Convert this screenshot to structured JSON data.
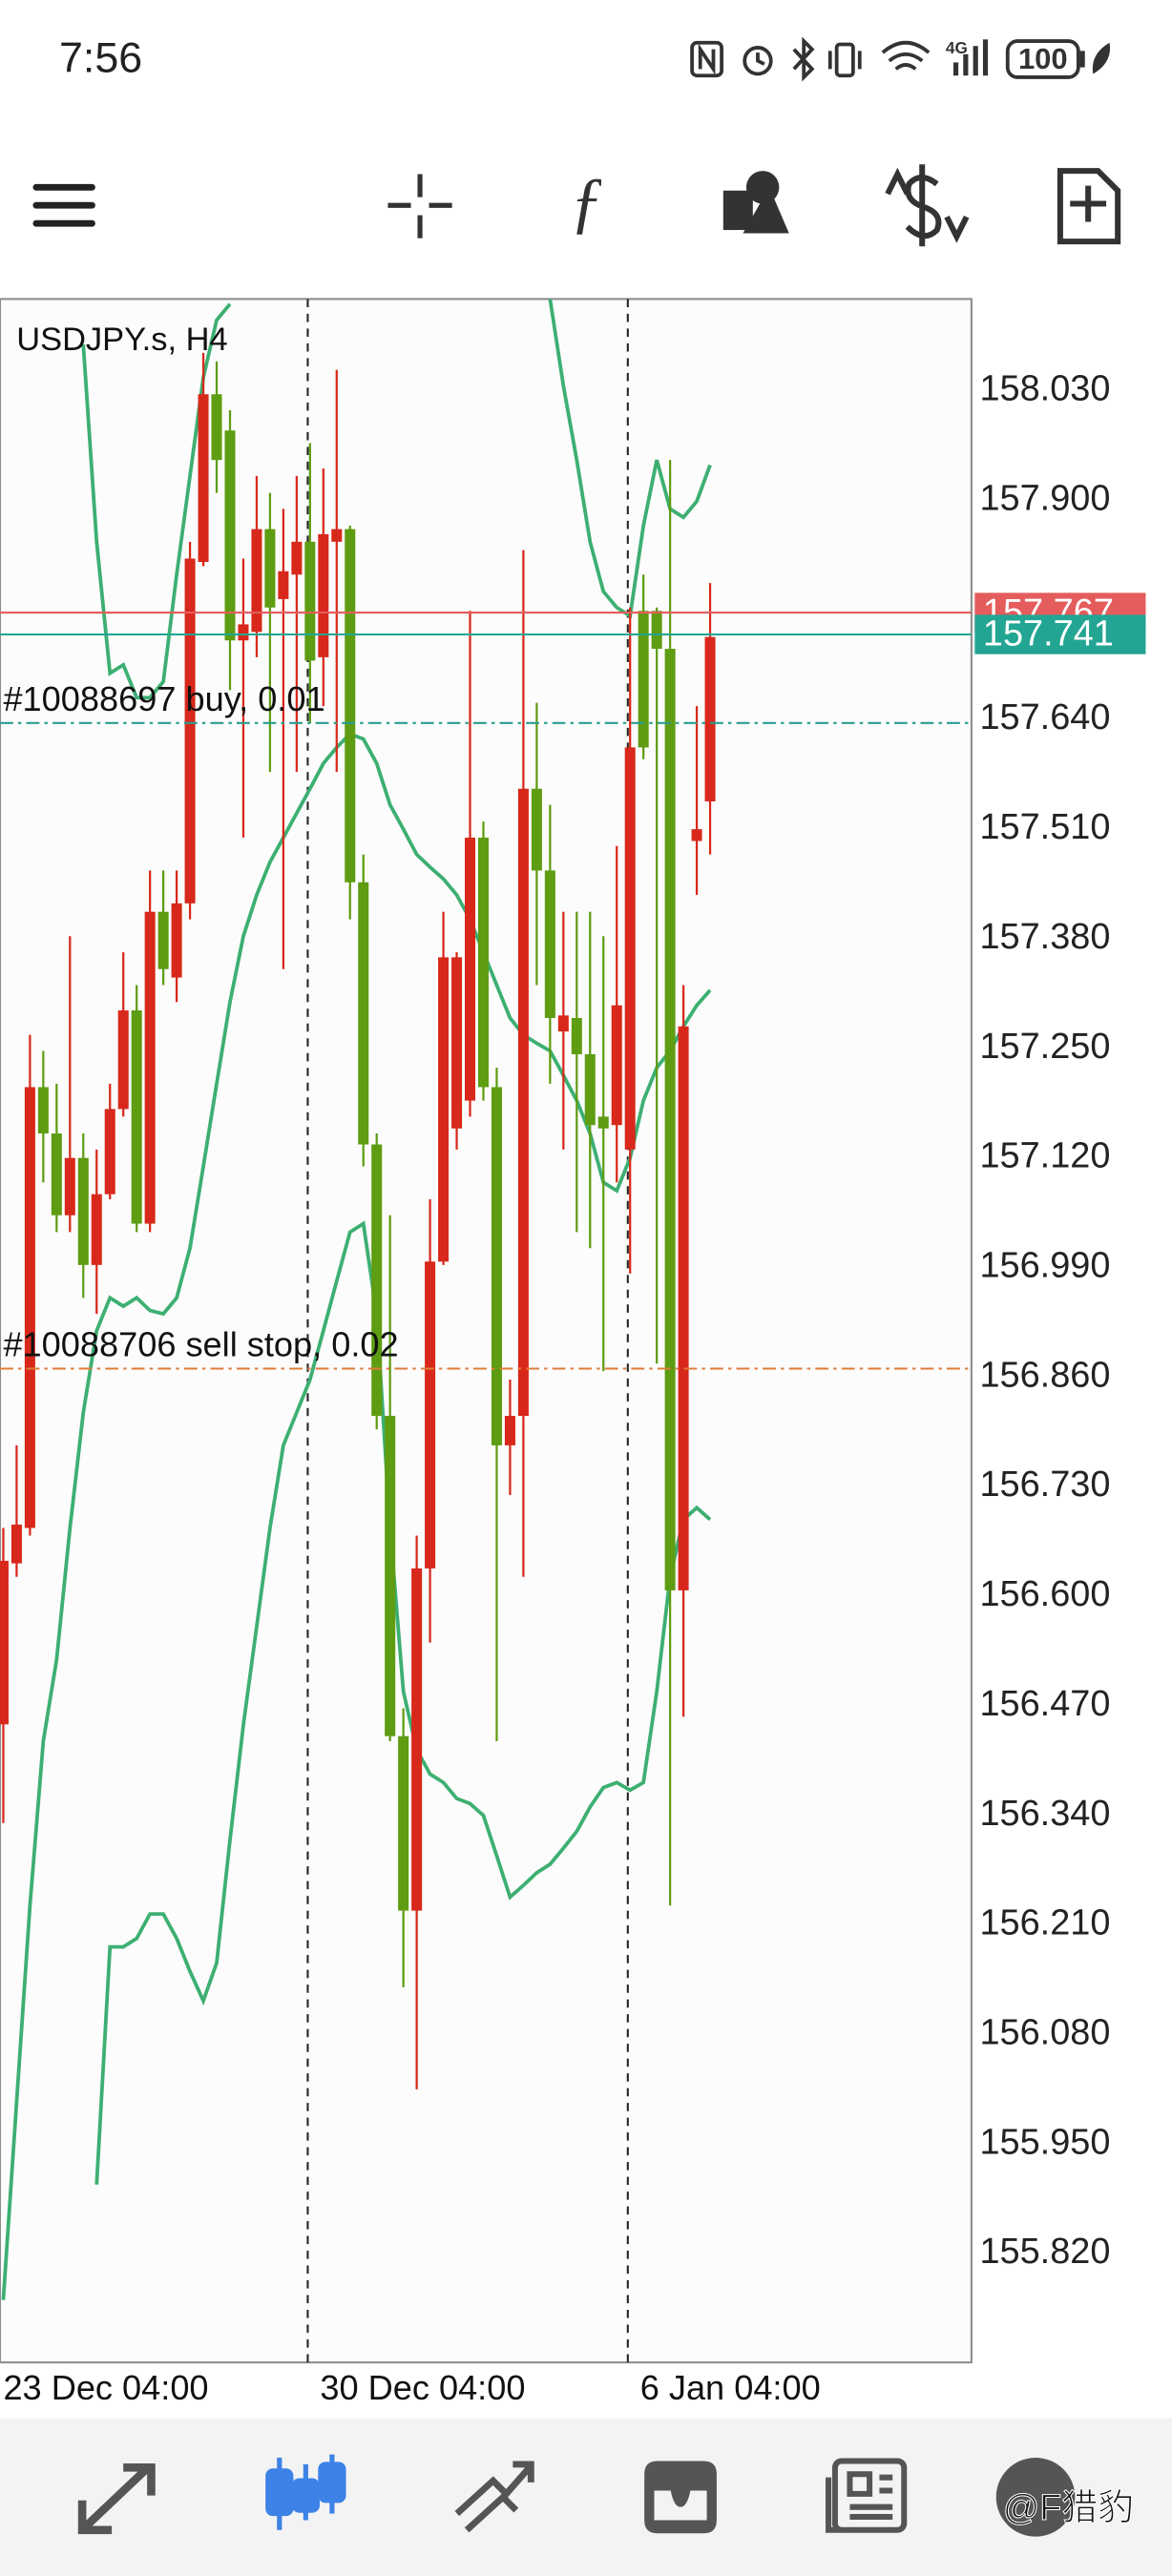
{
  "status_bar": {
    "time": "7:56",
    "network": "4G",
    "battery": "100"
  },
  "watermark": "@F猎豹",
  "chart_data": {
    "type": "candlestick",
    "title": "USDJPY.s, H4",
    "categories": [
      "23 Dec 04:00",
      null,
      null,
      null,
      null,
      null,
      null,
      null,
      null,
      null,
      null,
      null,
      null,
      null,
      null,
      null,
      null,
      null,
      null,
      null,
      null,
      null,
      null,
      null,
      "30 Dec 04:00",
      null,
      null,
      null,
      null,
      null,
      null,
      null,
      null,
      null,
      null,
      null,
      null,
      null,
      null,
      null,
      null,
      null,
      null,
      null,
      null,
      null,
      null,
      null,
      "6 Jan 04:00",
      null,
      null,
      null,
      null,
      null
    ],
    "open": [
      156.448,
      156.639,
      156.681,
      157.204,
      157.149,
      157.052,
      157.12,
      156.993,
      157.077,
      157.178,
      157.295,
      157.042,
      157.412,
      157.334,
      157.422,
      157.827,
      158.026,
      157.983,
      157.734,
      157.744,
      157.866,
      157.783,
      157.812,
      157.851,
      157.714,
      157.851,
      157.866,
      157.447,
      157.136,
      156.814,
      156.434,
      156.227,
      156.633,
      156.997,
      157.155,
      157.188,
      157.5,
      157.204,
      156.779,
      156.814,
      157.558,
      157.461,
      157.27,
      157.286,
      157.243,
      157.169,
      157.159,
      157.13,
      157.769,
      157.769,
      157.724,
      156.607,
      157.496,
      157.543
    ],
    "high": [
      156.681,
      156.779,
      157.266,
      157.247,
      157.208,
      157.383,
      157.149,
      157.13,
      157.208,
      157.364,
      157.325,
      157.461,
      157.461,
      157.461,
      157.851,
      158.075,
      158.065,
      158.007,
      157.831,
      157.929,
      157.909,
      157.89,
      157.929,
      157.968,
      157.938,
      158.055,
      157.87,
      157.48,
      157.149,
      157.052,
      156.467,
      156.672,
      157.071,
      157.412,
      157.364,
      157.769,
      157.519,
      157.227,
      156.857,
      157.841,
      157.66,
      157.539,
      157.412,
      157.412,
      157.412,
      157.383,
      157.49,
      157.773,
      157.812,
      157.773,
      157.948,
      157.325,
      157.656,
      157.802
    ],
    "low": [
      156.331,
      156.623,
      156.672,
      157.091,
      157.032,
      157.032,
      156.954,
      156.935,
      157.071,
      157.169,
      157.032,
      157.032,
      157.325,
      157.305,
      157.403,
      157.822,
      157.909,
      157.675,
      157.5,
      157.714,
      157.578,
      157.344,
      157.578,
      157.636,
      157.656,
      157.578,
      157.403,
      157.11,
      156.798,
      156.428,
      156.136,
      156.015,
      156.545,
      156.993,
      157.13,
      157.169,
      157.188,
      156.428,
      156.72,
      156.623,
      157.325,
      157.208,
      157.13,
      157.032,
      157.013,
      156.867,
      157.091,
      156.983,
      157.593,
      156.876,
      156.233,
      156.457,
      157.432,
      157.48
    ],
    "close": [
      156.642,
      156.685,
      157.204,
      157.149,
      157.052,
      157.12,
      156.993,
      157.077,
      157.178,
      157.295,
      157.042,
      157.412,
      157.344,
      157.422,
      157.831,
      158.026,
      157.948,
      157.734,
      157.753,
      157.866,
      157.773,
      157.816,
      157.851,
      157.71,
      157.86,
      157.866,
      157.447,
      157.136,
      156.814,
      156.434,
      156.227,
      156.633,
      156.997,
      157.358,
      157.358,
      157.5,
      157.204,
      156.779,
      156.814,
      157.558,
      157.461,
      157.286,
      157.289,
      157.243,
      157.159,
      157.155,
      157.301,
      157.607,
      157.607,
      157.724,
      156.607,
      157.276,
      157.51,
      157.738
    ],
    "up_color": "#d8281b",
    "down_color": "#5e9c12",
    "bands": {
      "color": "#3daf72",
      "upper": [
        null,
        null,
        null,
        null,
        null,
        null,
        158.085,
        157.851,
        157.695,
        157.705,
        157.666,
        157.666,
        157.685,
        157.812,
        157.929,
        158.046,
        158.114,
        158.133,
        null,
        null,
        null,
        null,
        null,
        null,
        null,
        null,
        null,
        null,
        null,
        null,
        null,
        null,
        null,
        null,
        null,
        null,
        null,
        null,
        null,
        null,
        null,
        158.139,
        158.036,
        157.948,
        157.851,
        157.792,
        157.773,
        157.763,
        157.87,
        157.948,
        157.89,
        157.88,
        157.899,
        157.942
      ],
      "middle": [
        155.765,
        156.0,
        156.233,
        156.428,
        156.525,
        156.681,
        156.818,
        156.915,
        156.954,
        156.944,
        156.954,
        156.939,
        156.935,
        156.954,
        157.013,
        157.11,
        157.208,
        157.305,
        157.383,
        157.432,
        157.471,
        157.5,
        157.529,
        157.558,
        157.588,
        157.607,
        157.623,
        157.617,
        157.588,
        157.539,
        157.51,
        157.48,
        157.465,
        157.451,
        157.432,
        157.403,
        157.364,
        157.325,
        157.286,
        157.266,
        157.256,
        157.247,
        157.218,
        157.188,
        157.149,
        157.091,
        157.081,
        157.12,
        157.188,
        157.227,
        157.247,
        157.276,
        157.301,
        157.319
      ],
      "lower": [
        null,
        null,
        null,
        null,
        null,
        null,
        null,
        155.902,
        156.184,
        156.184,
        156.194,
        156.223,
        156.223,
        156.194,
        156.155,
        156.12,
        156.165,
        156.311,
        156.447,
        156.564,
        156.681,
        156.779,
        156.818,
        156.857,
        156.915,
        156.974,
        157.032,
        157.042,
        156.935,
        156.681,
        156.487,
        156.418,
        156.389,
        156.379,
        156.36,
        156.354,
        156.34,
        156.292,
        156.243,
        156.257,
        156.272,
        156.282,
        156.301,
        156.321,
        156.35,
        156.373,
        156.379,
        156.37,
        156.379,
        156.487,
        156.623,
        156.691,
        156.705,
        156.691
      ]
    },
    "ylim": [
      155.691,
      158.139
    ],
    "yticks": [
      {
        "value": 158.03,
        "label": "158.030"
      },
      {
        "value": 157.9,
        "label": "157.900"
      },
      {
        "value": 157.64,
        "label": "157.640"
      },
      {
        "value": 157.51,
        "label": "157.510"
      },
      {
        "value": 157.38,
        "label": "157.380"
      },
      {
        "value": 157.25,
        "label": "157.250"
      },
      {
        "value": 157.12,
        "label": "157.120"
      },
      {
        "value": 156.99,
        "label": "156.990"
      },
      {
        "value": 156.86,
        "label": "156.860"
      },
      {
        "value": 156.73,
        "label": "156.730"
      },
      {
        "value": 156.6,
        "label": "156.600"
      },
      {
        "value": 156.47,
        "label": "156.470"
      },
      {
        "value": 156.34,
        "label": "156.340"
      },
      {
        "value": 156.21,
        "label": "156.210"
      },
      {
        "value": 156.08,
        "label": "156.080"
      },
      {
        "value": 155.95,
        "label": "155.950"
      },
      {
        "value": 155.82,
        "label": "155.820"
      }
    ],
    "price_lines": [
      {
        "value": 157.767,
        "label": "157.767",
        "color": "#e45c5c"
      },
      {
        "value": 157.741,
        "label": "157.741",
        "color": "#23a593"
      }
    ],
    "orders": [
      {
        "label": "#10088697 buy, 0.01",
        "value": 157.636,
        "color": "#2a9d8f"
      },
      {
        "label": "#10088706 sell stop, 0.02",
        "value": 156.87,
        "color": "#e07b39"
      }
    ]
  }
}
